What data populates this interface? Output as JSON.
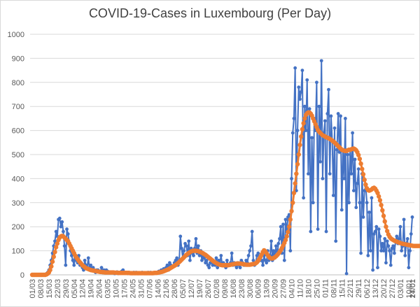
{
  "chart_data": {
    "type": "line",
    "title": "COVID-19-Cases in Luxembourg (Per Day)",
    "xlabel": "",
    "ylabel": "",
    "ylim": [
      0,
      1000
    ],
    "yticks": [
      0,
      100,
      200,
      300,
      400,
      500,
      600,
      700,
      800,
      900,
      1000
    ],
    "grid": true,
    "legend": "none",
    "x_tick_labels": [
      "01/03",
      "08/03",
      "15/03",
      "22/03",
      "29/03",
      "05/04",
      "12/04",
      "19/04",
      "26/04",
      "03/05",
      "10/05",
      "17/05",
      "24/05",
      "31/05",
      "07/06",
      "14/06",
      "21/06",
      "28/06",
      "05/07",
      "12/07",
      "19/07",
      "26/07",
      "02/08",
      "09/08",
      "16/08",
      "23/08",
      "30/08",
      "06/09",
      "13/09",
      "20/09",
      "27/09",
      "04/10",
      "11/10",
      "18/10",
      "25/10",
      "01/11",
      "08/11",
      "15/11",
      "22/11",
      "29/11",
      "06/12",
      "13/12",
      "20/12",
      "27/12",
      "03/01",
      "10/01",
      "17/01",
      "24/01"
    ],
    "series": [
      {
        "name": "",
        "color": "#4472c4",
        "values": [
          0,
          0,
          0,
          0,
          0,
          0,
          0,
          0,
          0,
          0,
          0,
          0,
          5,
          10,
          20,
          40,
          60,
          90,
          120,
          140,
          180,
          160,
          230,
          235,
          200,
          220,
          180,
          120,
          40,
          190,
          170,
          130,
          100,
          80,
          60,
          40,
          70,
          60,
          50,
          80,
          40,
          50,
          30,
          20,
          60,
          40,
          30,
          70,
          20,
          40,
          20,
          30,
          20,
          10,
          20,
          20,
          15,
          10,
          30,
          10,
          20,
          10,
          20,
          15,
          10,
          8,
          10,
          12,
          10,
          5,
          8,
          12,
          5,
          10,
          8,
          15,
          20,
          10,
          10,
          8,
          5,
          10,
          8,
          5,
          5,
          10,
          5,
          10,
          5,
          5,
          8,
          5,
          10,
          8,
          5,
          5,
          5,
          10,
          5,
          10,
          5,
          5,
          5,
          10,
          8,
          10,
          15,
          10,
          20,
          15,
          25,
          20,
          30,
          40,
          20,
          50,
          40,
          30,
          35,
          50,
          60,
          70,
          40,
          60,
          160,
          110,
          70,
          100,
          130,
          120,
          80,
          140,
          60,
          110,
          90,
          80,
          110,
          150,
          90,
          120,
          80,
          100,
          60,
          80,
          70,
          50,
          60,
          40,
          30,
          50,
          60,
          40,
          50,
          40,
          70,
          30,
          60,
          50,
          80,
          40,
          50,
          40,
          30,
          60,
          40,
          40,
          50,
          90,
          40,
          50,
          40,
          30,
          50,
          40,
          30,
          60,
          50,
          40,
          40,
          60,
          50,
          80,
          100,
          120,
          180,
          60,
          40,
          50,
          80,
          90,
          70,
          60,
          60,
          40,
          80,
          60,
          50,
          100,
          60,
          80,
          140,
          60,
          100,
          70,
          120,
          80,
          130,
          150,
          200,
          90,
          210,
          60,
          230,
          180,
          240,
          250,
          100,
          400,
          590,
          650,
          860,
          350,
          600,
          780,
          730,
          760,
          850,
          320,
          700,
          600,
          810,
          420,
          690,
          180,
          570,
          300,
          650,
          600,
          800,
          190,
          700,
          470,
          890,
          400,
          590,
          640,
          180,
          670,
          770,
          420,
          660,
          560,
          330,
          610,
          140,
          520,
          670,
          510,
          660,
          270,
          520,
          400,
          650,
          5,
          500,
          300,
          520,
          420,
          590,
          350,
          480,
          280,
          380,
          440,
          300,
          90,
          420,
          240,
          350,
          370,
          300,
          80,
          260,
          100,
          320,
          20,
          170,
          180,
          200,
          30,
          190,
          160,
          100,
          130,
          100,
          150,
          50,
          140,
          120,
          100,
          40,
          110,
          120,
          90,
          140,
          160,
          130,
          150,
          200,
          100,
          120,
          230,
          80,
          130,
          150,
          30,
          100,
          170,
          240
        ]
      },
      {
        "name": "",
        "color": "#ed7d31",
        "values": [
          0,
          0,
          0,
          0,
          0,
          0,
          0,
          0,
          0,
          0,
          0,
          0,
          2,
          5,
          10,
          20,
          35,
          55,
          75,
          95,
          115,
          130,
          145,
          155,
          160,
          162,
          160,
          155,
          150,
          145,
          140,
          130,
          120,
          110,
          100,
          90,
          80,
          72,
          65,
          58,
          52,
          46,
          40,
          36,
          32,
          28,
          26,
          24,
          22,
          20,
          19,
          18,
          17,
          16,
          15,
          14,
          13,
          12,
          12,
          11,
          11,
          10,
          10,
          10,
          10,
          10,
          10,
          10,
          10,
          9,
          9,
          9,
          8,
          8,
          8,
          8,
          8,
          8,
          8,
          8,
          8,
          8,
          7,
          7,
          7,
          7,
          7,
          7,
          7,
          7,
          7,
          7,
          7,
          7,
          7,
          7,
          7,
          7,
          7,
          7,
          7,
          7,
          8,
          8,
          8,
          9,
          10,
          11,
          12,
          13,
          15,
          17,
          19,
          21,
          23,
          26,
          29,
          32,
          35,
          38,
          41,
          45,
          49,
          53,
          58,
          63,
          68,
          73,
          78,
          83,
          87,
          91,
          94,
          97,
          99,
          100,
          100,
          100,
          99,
          98,
          96,
          94,
          92,
          89,
          86,
          83,
          79,
          75,
          71,
          67,
          63,
          59,
          55,
          52,
          49,
          46,
          44,
          42,
          41,
          40,
          40,
          40,
          40,
          40,
          40,
          41,
          42,
          43,
          44,
          45,
          46,
          47,
          47,
          47,
          47,
          46,
          45,
          44,
          43,
          42,
          42,
          42,
          42,
          43,
          44,
          45,
          46,
          48,
          52,
          58,
          66,
          75,
          85,
          95,
          102,
          98,
          90,
          82,
          75,
          70,
          68,
          68,
          70,
          73,
          77,
          82,
          88,
          95,
          103,
          112,
          122,
          133,
          145,
          160,
          178,
          200,
          230,
          265,
          300,
          340,
          380,
          420,
          460,
          500,
          540,
          575,
          605,
          630,
          650,
          665,
          672,
          675,
          675,
          670,
          662,
          650,
          638,
          626,
          614,
          602,
          595,
          590,
          585,
          580,
          578,
          575,
          572,
          570,
          568,
          565,
          562,
          558,
          554,
          550,
          545,
          540,
          535,
          530,
          525,
          520,
          518,
          516,
          515,
          515,
          518,
          520,
          520,
          522,
          524,
          525,
          522,
          518,
          510,
          498,
          482,
          462,
          440,
          418,
          395,
          375,
          360,
          352,
          350,
          352,
          355,
          360,
          362,
          358,
          350,
          340,
          326,
          310,
          290,
          268,
          245,
          222,
          200,
          182,
          168,
          158,
          152,
          148,
          145,
          142,
          140,
          138,
          136,
          134,
          132,
          130,
          129,
          128,
          127,
          126,
          125,
          124,
          123,
          122,
          121,
          120,
          120,
          120,
          120,
          120,
          120,
          121,
          122,
          122,
          123,
          123,
          124,
          125,
          126
        ]
      }
    ]
  }
}
